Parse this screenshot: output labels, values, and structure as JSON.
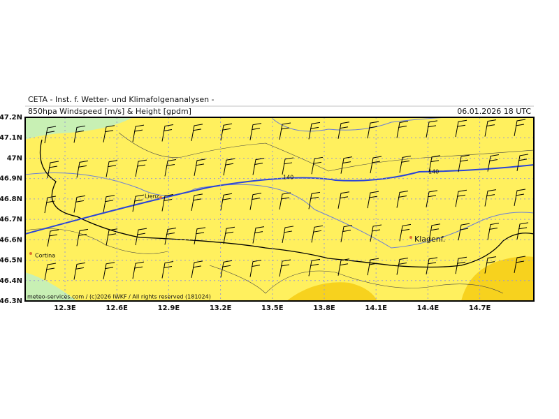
{
  "header": {
    "title": "CETA - Inst. f. Wetter- und Klimafolgenanalysen -",
    "subtitle": "850hpa Windspeed [m/s] & Height [gpdm]",
    "valid_time": "06.01.2026 18 UTC"
  },
  "axes": {
    "lat_labels": [
      "47.2N",
      "47.1N",
      "47N",
      "46.9N",
      "46.8N",
      "46.7N",
      "46.6N",
      "46.5N",
      "46.4N",
      "46.3N"
    ],
    "lon_labels": [
      "12.3E",
      "12.6E",
      "12.9E",
      "13.2E",
      "13.5E",
      "13.8E",
      "14.1E",
      "14.4E",
      "14.7E"
    ]
  },
  "places": [
    "Lienz",
    "Cortina",
    "Klagenf."
  ],
  "contour_labels": [
    "140",
    "140"
  ],
  "footer": "meteo-services.com / (c)2026 IWKF / All rights reserved (181024)"
}
